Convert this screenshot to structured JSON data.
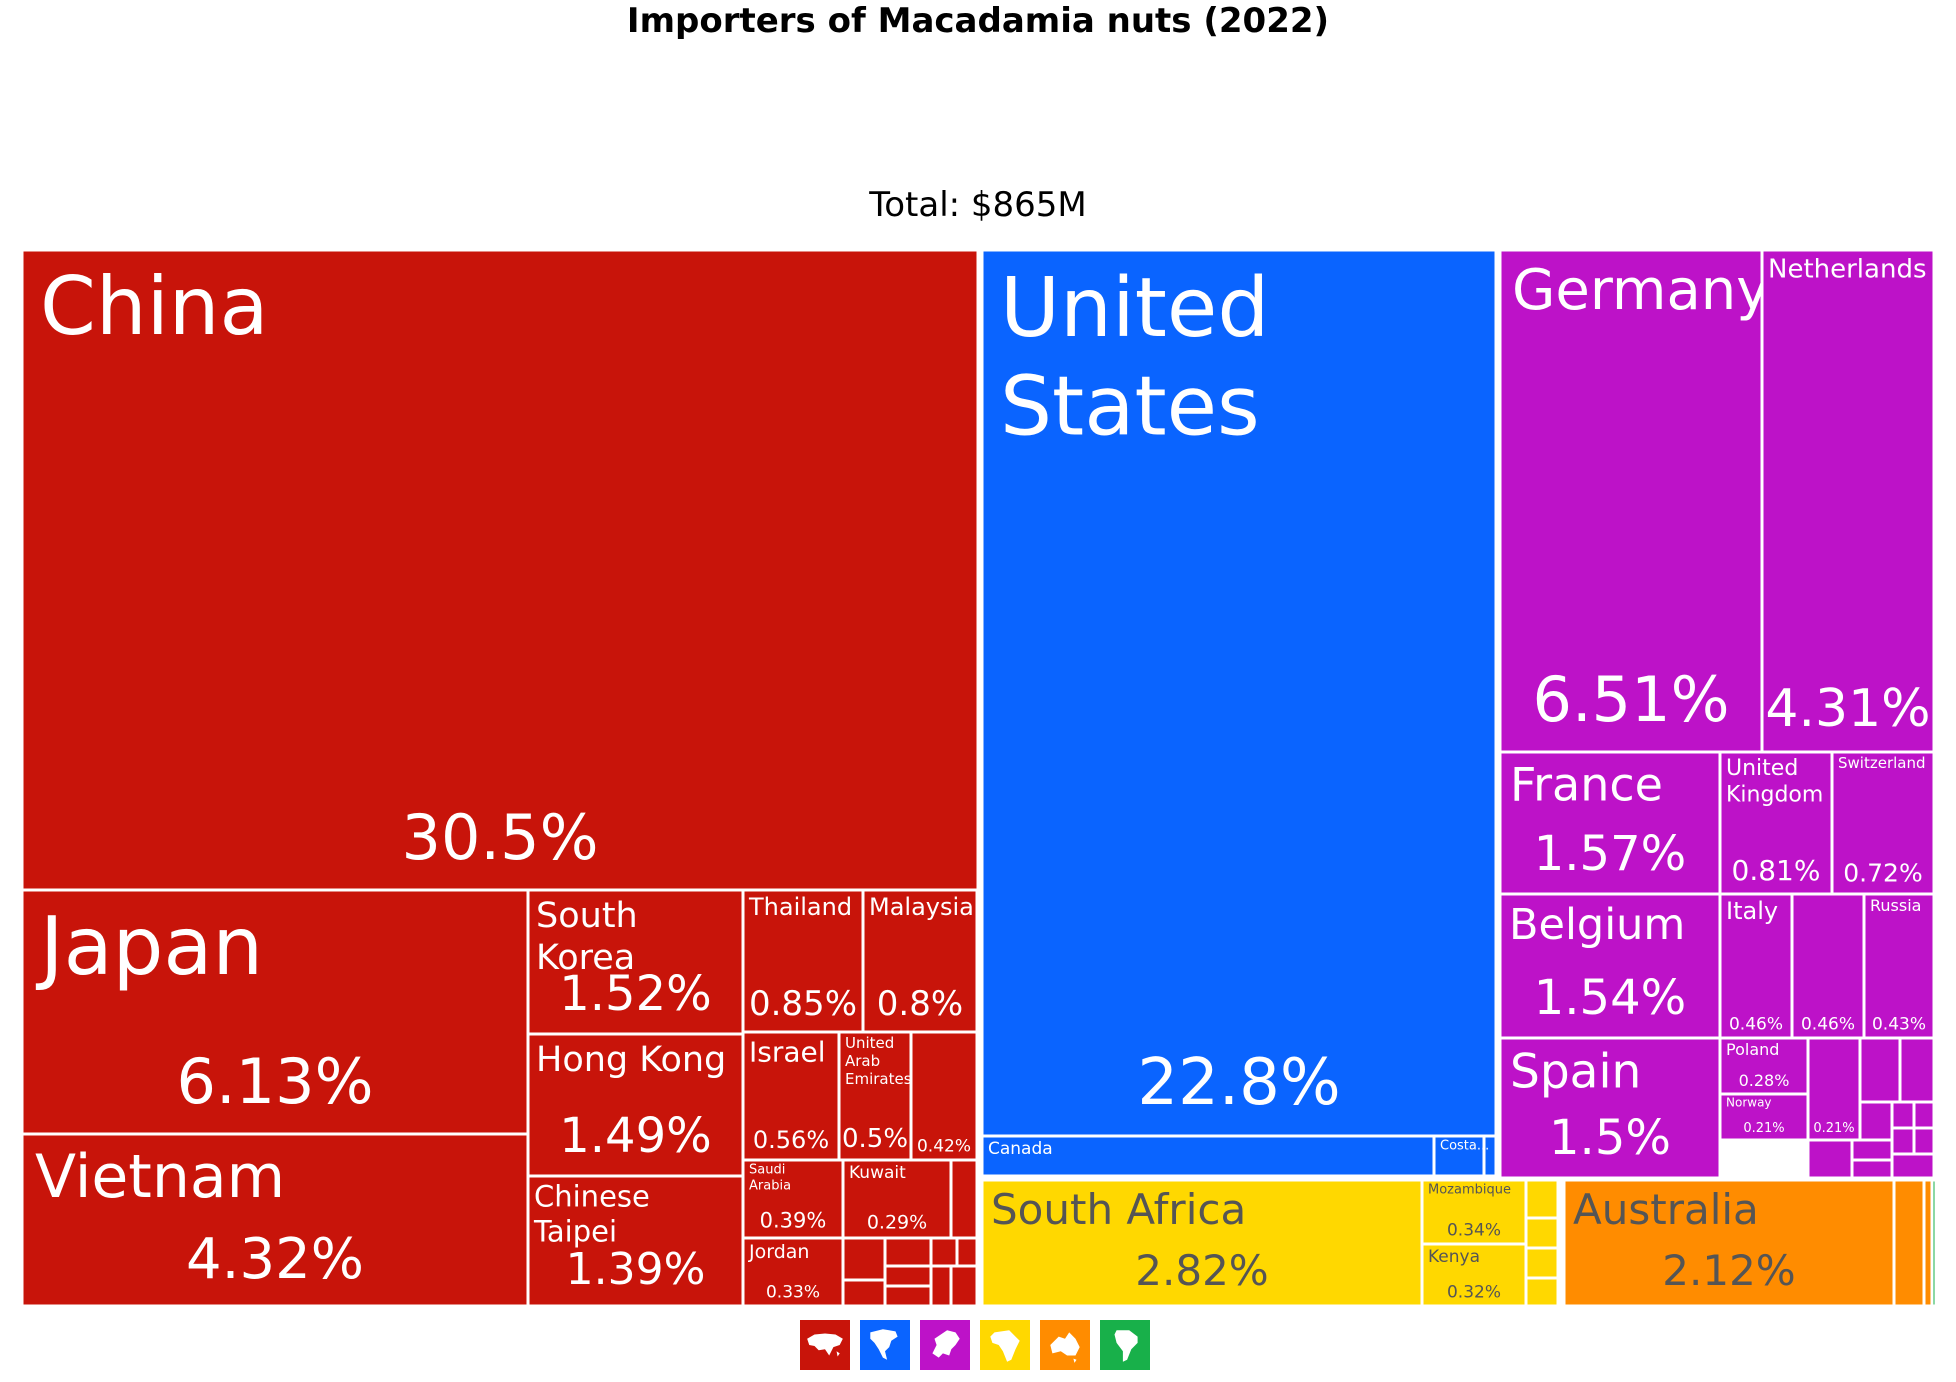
{
  "chart_data": {
    "type": "treemap",
    "title": "Importers of Macadamia nuts (2022)",
    "subtitle": "Total: $865M",
    "unit": "% of total imports",
    "continents": [
      {
        "name": "Asia",
        "color": "#c8140a"
      },
      {
        "name": "North America",
        "color": "#0a64ff"
      },
      {
        "name": "Europe",
        "color": "#bd12c8"
      },
      {
        "name": "Africa",
        "color": "#ffd800"
      },
      {
        "name": "Oceania",
        "color": "#ff8c00"
      },
      {
        "name": "South America",
        "color": "#18b04a"
      }
    ],
    "cells": [
      {
        "name": "China",
        "value": "30.5%",
        "continent": "Asia"
      },
      {
        "name": "Japan",
        "value": "6.13%",
        "continent": "Asia"
      },
      {
        "name": "Vietnam",
        "value": "4.32%",
        "continent": "Asia"
      },
      {
        "name": "South Korea",
        "value": "1.52%",
        "continent": "Asia"
      },
      {
        "name": "Hong Kong",
        "value": "1.49%",
        "continent": "Asia"
      },
      {
        "name": "Chinese Taipei",
        "value": "1.39%",
        "continent": "Asia"
      },
      {
        "name": "Thailand",
        "value": "0.85%",
        "continent": "Asia"
      },
      {
        "name": "Malaysia",
        "value": "0.8%",
        "continent": "Asia"
      },
      {
        "name": "Israel",
        "value": "0.56%",
        "continent": "Asia"
      },
      {
        "name": "United Arab Emirates",
        "value": "0.5%",
        "continent": "Asia"
      },
      {
        "name": "",
        "value": "0.42%",
        "continent": "Asia"
      },
      {
        "name": "Saudi Arabia",
        "value": "0.39%",
        "continent": "Asia"
      },
      {
        "name": "Kuwait",
        "value": "0.29%",
        "continent": "Asia"
      },
      {
        "name": "Jordan",
        "value": "0.33%",
        "continent": "Asia"
      },
      {
        "name": "United States",
        "value": "22.8%",
        "continent": "North America"
      },
      {
        "name": "Canada",
        "value": "",
        "continent": "North America"
      },
      {
        "name": "Costa...",
        "value": "",
        "continent": "North America"
      },
      {
        "name": "Germany",
        "value": "6.51%",
        "continent": "Europe"
      },
      {
        "name": "Netherlands",
        "value": "4.31%",
        "continent": "Europe"
      },
      {
        "name": "France",
        "value": "1.57%",
        "continent": "Europe"
      },
      {
        "name": "United Kingdom",
        "value": "0.81%",
        "continent": "Europe"
      },
      {
        "name": "Switzerland",
        "value": "0.72%",
        "continent": "Europe"
      },
      {
        "name": "Belgium",
        "value": "1.54%",
        "continent": "Europe"
      },
      {
        "name": "Italy",
        "value": "0.46%",
        "continent": "Europe"
      },
      {
        "name": "",
        "value": "0.46%",
        "continent": "Europe"
      },
      {
        "name": "Russia",
        "value": "0.43%",
        "continent": "Europe"
      },
      {
        "name": "Spain",
        "value": "1.5%",
        "continent": "Europe"
      },
      {
        "name": "Poland",
        "value": "0.28%",
        "continent": "Europe"
      },
      {
        "name": "Norway",
        "value": "0.21%",
        "continent": "Europe"
      },
      {
        "name": "",
        "value": "0.21%",
        "continent": "Europe"
      },
      {
        "name": "South Africa",
        "value": "2.82%",
        "continent": "Africa"
      },
      {
        "name": "Mozambique",
        "value": "0.34%",
        "continent": "Africa"
      },
      {
        "name": "Kenya",
        "value": "0.32%",
        "continent": "Africa"
      },
      {
        "name": "Australia",
        "value": "2.12%",
        "continent": "Oceania"
      }
    ],
    "legend": [
      "asia-icon",
      "north-america-icon",
      "europe-icon",
      "africa-icon",
      "oceania-icon",
      "south-america-icon"
    ]
  }
}
